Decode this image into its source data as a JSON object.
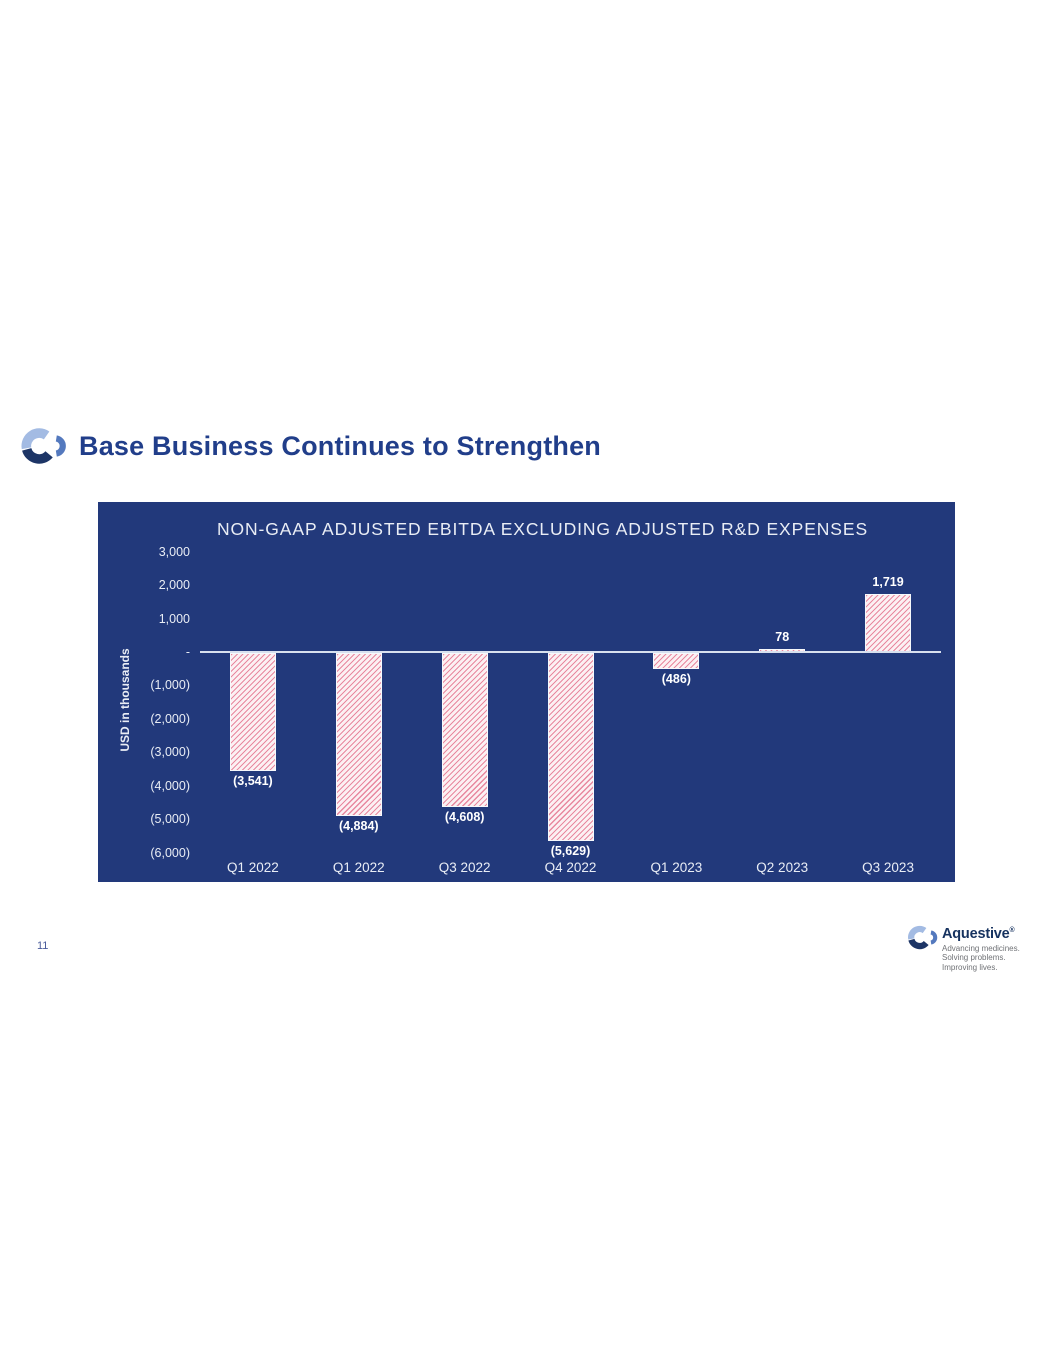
{
  "page": {
    "number": "11",
    "title": "Base Business Continues to Strengthen"
  },
  "brand": {
    "name": "Aquestive",
    "trademark": "®",
    "tagline_lines": [
      "Advancing medicines.",
      "Solving problems.",
      "Improving lives."
    ],
    "logo_colors": {
      "light_blue": "#A3BBE3",
      "mid_blue": "#5479BE",
      "dark_navy": "#1D3566"
    }
  },
  "chart_style": {
    "panel_background": "#22397B",
    "text_color": "#E9EDF5",
    "value_label_color": "#FFFFFF",
    "bar_hatch_line": "#E8889F",
    "bar_hatch_base": "#FCF0F3",
    "zero_line_color": "#D9E1EF"
  },
  "chart_data": {
    "type": "bar",
    "title": "NON-GAAP ADJUSTED EBITDA EXCLUDING ADJUSTED R&D EXPENSES",
    "xlabel": "",
    "ylabel": "USD in thousands",
    "categories": [
      "Q1 2022",
      "Q1 2022",
      "Q3 2022",
      "Q4 2022",
      "Q1 2023",
      "Q2 2023",
      "Q3 2023"
    ],
    "values": [
      -3541,
      -4884,
      -4608,
      -5629,
      -486,
      78,
      1719
    ],
    "labels": [
      "(3,541)",
      "(4,884)",
      "(4,608)",
      "(5,629)",
      "(486)",
      "78",
      "1,719"
    ],
    "ylim": [
      -6000,
      3000
    ],
    "ytick_values": [
      3000,
      2000,
      1000,
      0,
      -1000,
      -2000,
      -3000,
      -4000,
      -5000,
      -6000
    ],
    "ytick_labels": [
      "3,000",
      "2,000",
      "1,000",
      "-",
      "(1,000)",
      "(2,000)",
      "(3,000)",
      "(4,000)",
      "(5,000)",
      "(6,000)"
    ],
    "grid": false,
    "legend": false
  }
}
